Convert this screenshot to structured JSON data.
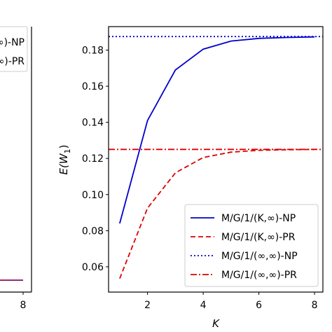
{
  "chart_data": [
    {
      "type": "line",
      "partial": true,
      "x_ticks": [
        8
      ],
      "legend_visible_fragments": [
        "∞)-NP",
        "∞)-PR"
      ],
      "colors": {
        "np": "#0000cc",
        "pr": "#dd0000"
      }
    },
    {
      "type": "line",
      "xlabel": "K",
      "ylabel": "E(W1)",
      "ylabel_main": "E(W",
      "ylabel_sub": "1",
      "ylabel_close": ")",
      "xlim": [
        0.6,
        8.3
      ],
      "ylim": [
        0.046,
        0.193
      ],
      "x_ticks": [
        2,
        4,
        6,
        8
      ],
      "y_ticks": [
        0.06,
        0.08,
        0.1,
        0.12,
        0.14,
        0.16,
        0.18
      ],
      "y_tick_labels": [
        "0.06",
        "0.08",
        "0.10",
        "0.12",
        "0.14",
        "0.16",
        "0.18"
      ],
      "grid": false,
      "legend_position": "lower-right",
      "series": [
        {
          "name": "M/G/1/(K,∞)-NP",
          "style": "solid",
          "color": "#0000cc",
          "x": [
            1,
            2,
            3,
            4,
            5,
            6,
            7,
            8
          ],
          "y": [
            0.084,
            0.141,
            0.169,
            0.1805,
            0.185,
            0.1865,
            0.187,
            0.1873
          ]
        },
        {
          "name": "M/G/1/(K,∞)-PR",
          "style": "dashed",
          "color": "#dd0000",
          "x": [
            1,
            2,
            3,
            4,
            5,
            6,
            7,
            8
          ],
          "y": [
            0.0535,
            0.0925,
            0.112,
            0.1205,
            0.1235,
            0.1245,
            0.1248,
            0.125
          ]
        },
        {
          "name": "M/G/1/(∞,∞)-NP",
          "style": "dotted",
          "color": "#0000cc",
          "constant": 0.1875
        },
        {
          "name": "M/G/1/(∞,∞)-PR",
          "style": "dashdot",
          "color": "#dd0000",
          "constant": 0.125
        }
      ]
    }
  ]
}
